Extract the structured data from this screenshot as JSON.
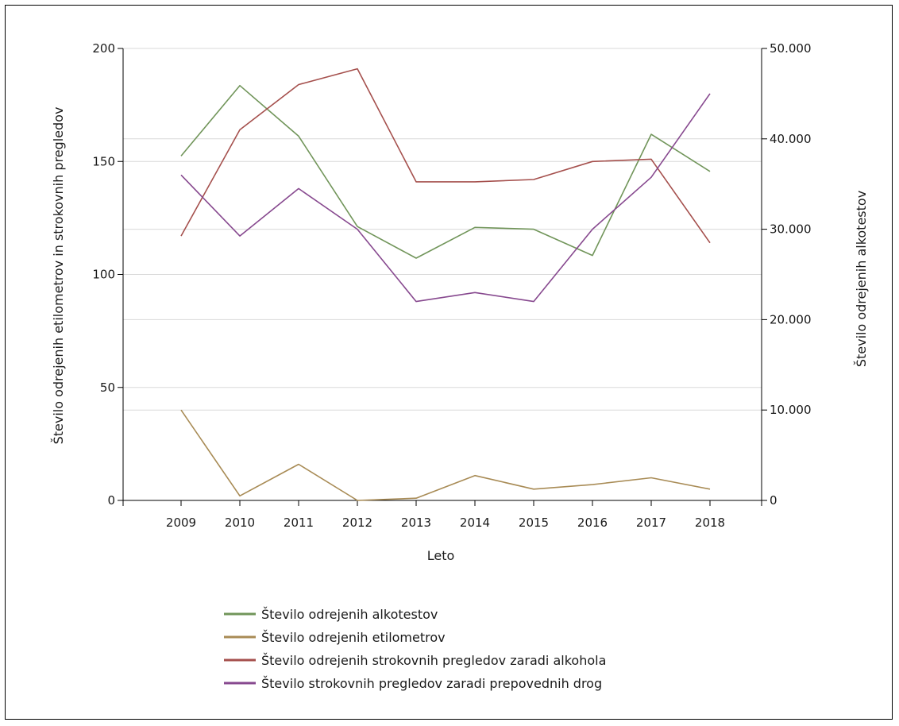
{
  "chart_data": {
    "type": "line",
    "title": "",
    "xlabel": "Leto",
    "ylabel_left": "Število odrejenih etilometrov in strokovnih pregledov",
    "ylabel_right": "Število odrejenih alkotestov",
    "categories": [
      "2009",
      "2010",
      "2011",
      "2012",
      "2013",
      "2014",
      "2015",
      "2016",
      "2017",
      "2018"
    ],
    "left_axis": {
      "ylim": [
        0,
        200
      ],
      "ticks": [
        0,
        50,
        100,
        150,
        200
      ],
      "tick_labels": [
        "0",
        "50",
        "100",
        "150",
        "200"
      ]
    },
    "right_axis": {
      "ylim": [
        0,
        50000
      ],
      "ticks": [
        0,
        10000,
        20000,
        30000,
        40000,
        50000
      ],
      "tick_labels": [
        "0",
        "10.000",
        "20.000",
        "30.000",
        "40.000",
        "50.000"
      ]
    },
    "grid": true,
    "legend_position": "bottom-left",
    "series": [
      {
        "name": "Število odrejenih alkotestov",
        "axis": "right",
        "color": "#71955a",
        "values": [
          38100,
          45900,
          40300,
          30300,
          26800,
          30200,
          30000,
          27100,
          40500,
          36400
        ]
      },
      {
        "name": "Število odrejenih etilometrov",
        "axis": "left",
        "color": "#a88b55",
        "values": [
          40,
          2,
          16,
          0,
          1,
          11,
          5,
          7,
          10,
          5
        ]
      },
      {
        "name": "Število odrejenih strokovnih pregledov zaradi alkohola",
        "axis": "left",
        "color": "#a5504d",
        "values": [
          117,
          164,
          184,
          191,
          141,
          141,
          142,
          150,
          151,
          114
        ]
      },
      {
        "name": "Število strokovnih pregledov zaradi prepovednih drog",
        "axis": "left",
        "color": "#87498f",
        "values": [
          144,
          117,
          138,
          120,
          88,
          92,
          88,
          120,
          143,
          180
        ]
      }
    ]
  }
}
